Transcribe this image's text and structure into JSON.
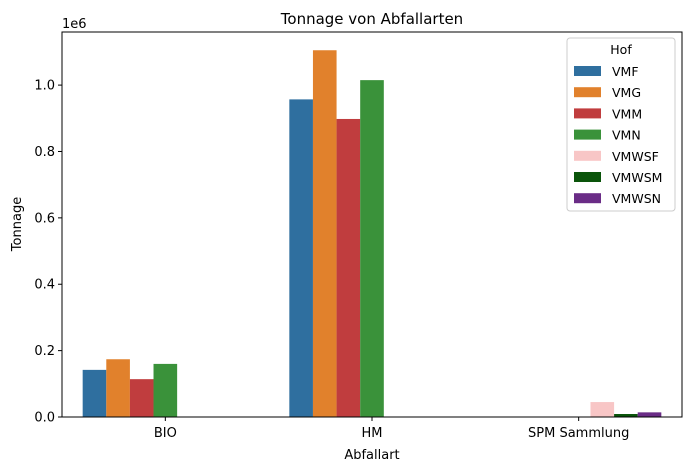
{
  "chart_data": {
    "type": "bar",
    "title": "Tonnage von Abfallarten",
    "xlabel": "Abfallart",
    "ylabel": "Tonnage",
    "y_offset_label": "1e6",
    "categories": [
      "BIO",
      "HM",
      "SPM Sammlung"
    ],
    "ylim": [
      0,
      1.16
    ],
    "yticks": [
      "0.0",
      "0.2",
      "0.4",
      "0.6",
      "0.8",
      "1.0"
    ],
    "grid": false,
    "legend_title": "Hof",
    "legend_position": "top-right",
    "series": [
      {
        "name": "VMF",
        "color": "#2f6f9f",
        "values": [
          0.142,
          0.957,
          null
        ]
      },
      {
        "name": "VMG",
        "color": "#e1812c",
        "values": [
          0.174,
          1.105,
          null
        ]
      },
      {
        "name": "VMM",
        "color": "#c03d3e",
        "values": [
          0.114,
          0.898,
          null
        ]
      },
      {
        "name": "VMN",
        "color": "#3a923a",
        "values": [
          0.16,
          1.015,
          null
        ]
      },
      {
        "name": "VMWSF",
        "color": "#f8c6c6",
        "values": [
          null,
          null,
          0.045
        ]
      },
      {
        "name": "VMWSM",
        "color": "#0a540a",
        "values": [
          null,
          null,
          0.009
        ]
      },
      {
        "name": "VMWSN",
        "color": "#6a2c86",
        "values": [
          null,
          null,
          0.014
        ]
      }
    ]
  }
}
